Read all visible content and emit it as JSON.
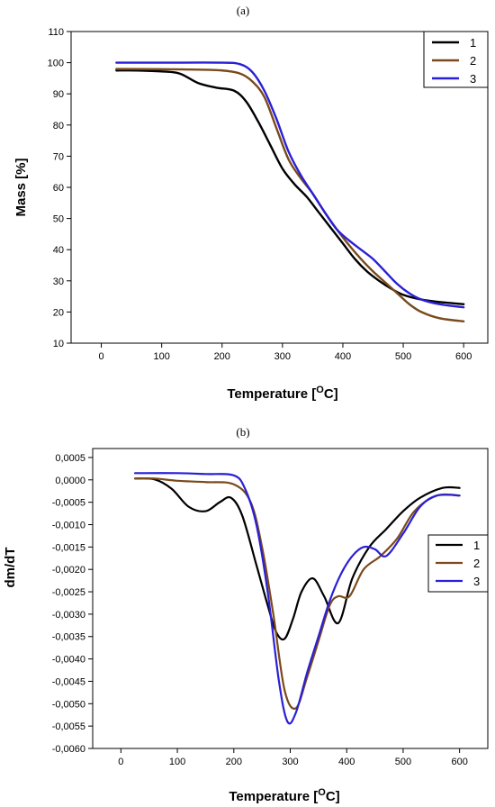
{
  "chart_data": [
    {
      "type": "line",
      "panel_label": "(a)",
      "xlabel_main": "Temperature [",
      "xlabel_sup": "O",
      "xlabel_end": "C]",
      "ylabel": "Mass [%]",
      "xlim": [
        -50,
        640
      ],
      "ylim": [
        10,
        110
      ],
      "xticks": [
        0,
        100,
        200,
        300,
        400,
        500,
        600
      ],
      "yticks": [
        10,
        20,
        30,
        40,
        50,
        60,
        70,
        80,
        90,
        100,
        110
      ],
      "legend_position": "top-right",
      "series": [
        {
          "name": "1",
          "color": "#000000",
          "x": [
            25,
            60,
            100,
            130,
            160,
            190,
            220,
            240,
            260,
            280,
            300,
            320,
            340,
            360,
            380,
            400,
            420,
            440,
            460,
            480,
            500,
            530,
            560,
            600
          ],
          "y": [
            97.5,
            97.5,
            97.2,
            96.5,
            93.5,
            92.0,
            91.0,
            87.5,
            81.0,
            73.5,
            66.0,
            61.0,
            57.0,
            52.0,
            47.0,
            42.0,
            37.0,
            33.0,
            30.0,
            27.5,
            25.5,
            24.0,
            23.2,
            22.5
          ]
        },
        {
          "name": "2",
          "color": "#7a4a1c",
          "x": [
            25,
            100,
            150,
            200,
            230,
            250,
            270,
            290,
            310,
            330,
            350,
            370,
            390,
            410,
            430,
            450,
            470,
            490,
            510,
            530,
            560,
            600
          ],
          "y": [
            98.0,
            97.9,
            97.8,
            97.5,
            96.5,
            94.0,
            89.0,
            79.0,
            69.0,
            63.0,
            58.0,
            52.0,
            46.5,
            41.5,
            37.0,
            33.0,
            29.5,
            26.0,
            22.5,
            20.0,
            18.0,
            17.0
          ]
        },
        {
          "name": "3",
          "color": "#2a1fd6",
          "x": [
            25,
            100,
            200,
            230,
            250,
            270,
            290,
            310,
            330,
            350,
            370,
            390,
            410,
            430,
            450,
            470,
            490,
            510,
            530,
            560,
            600
          ],
          "y": [
            100.0,
            100.0,
            100.0,
            99.5,
            97.0,
            91.0,
            82.0,
            71.5,
            64.0,
            58.0,
            52.0,
            46.5,
            43.0,
            40.0,
            37.0,
            33.0,
            29.0,
            26.0,
            24.0,
            22.5,
            21.5
          ]
        }
      ]
    },
    {
      "type": "line",
      "panel_label": "(b)",
      "xlabel_main": "Temperature [",
      "xlabel_sup": "O",
      "xlabel_end": "C]",
      "ylabel": "dm/dT",
      "xlim": [
        -50,
        650
      ],
      "ylim": [
        -0.006,
        0.0007
      ],
      "xticks": [
        0,
        100,
        200,
        300,
        400,
        500,
        600
      ],
      "yticks": [
        0.0005,
        0.0,
        -0.0005,
        -0.001,
        -0.0015,
        -0.002,
        -0.0025,
        -0.003,
        -0.0035,
        -0.004,
        -0.0045,
        -0.005,
        -0.0055,
        -0.006
      ],
      "ytick_labels": [
        "0,0005",
        "0,0000",
        "-0,0005",
        "-0,0010",
        "-0,0015",
        "-0,0020",
        "-0,0025",
        "-0,0030",
        "-0,0035",
        "-0,0040",
        "-0,0045",
        "-0,0050",
        "-0,0055",
        "-0,0060"
      ],
      "legend_position": "right",
      "series": [
        {
          "name": "1",
          "color": "#000000",
          "x": [
            25,
            60,
            90,
            120,
            150,
            175,
            195,
            215,
            240,
            260,
            275,
            290,
            305,
            320,
            340,
            360,
            385,
            410,
            440,
            470,
            500,
            530,
            570,
            600
          ],
          "y": [
            3e-05,
            1e-05,
            -0.0002,
            -0.0006,
            -0.0007,
            -0.0005,
            -0.0004,
            -0.0008,
            -0.0019,
            -0.0028,
            -0.0034,
            -0.00355,
            -0.0031,
            -0.0025,
            -0.0022,
            -0.0026,
            -0.0032,
            -0.0022,
            -0.0015,
            -0.0011,
            -0.0007,
            -0.0004,
            -0.00018,
            -0.00018
          ]
        },
        {
          "name": "2",
          "color": "#7a4a1c",
          "x": [
            25,
            60,
            100,
            150,
            200,
            230,
            250,
            270,
            290,
            310,
            330,
            350,
            370,
            385,
            405,
            430,
            460,
            490,
            520,
            560,
            600
          ],
          "y": [
            3e-05,
            3e-05,
            -2e-05,
            -5e-05,
            -0.0001,
            -0.0005,
            -0.0015,
            -0.003,
            -0.0047,
            -0.0051,
            -0.0044,
            -0.0036,
            -0.0028,
            -0.0026,
            -0.0026,
            -0.002,
            -0.0017,
            -0.0013,
            -0.0007,
            -0.00035,
            -0.00035
          ]
        },
        {
          "name": "3",
          "color": "#2a1fd6",
          "x": [
            25,
            100,
            150,
            200,
            220,
            240,
            260,
            280,
            295,
            310,
            330,
            350,
            370,
            390,
            410,
            430,
            450,
            470,
            500,
            530,
            560,
            600
          ],
          "y": [
            0.00015,
            0.00015,
            0.00013,
            0.0001,
            -0.0002,
            -0.001,
            -0.0025,
            -0.0045,
            -0.0054,
            -0.0052,
            -0.0043,
            -0.0035,
            -0.0027,
            -0.0021,
            -0.0017,
            -0.0015,
            -0.00155,
            -0.0017,
            -0.0012,
            -0.0006,
            -0.00035,
            -0.00035
          ]
        }
      ]
    }
  ]
}
